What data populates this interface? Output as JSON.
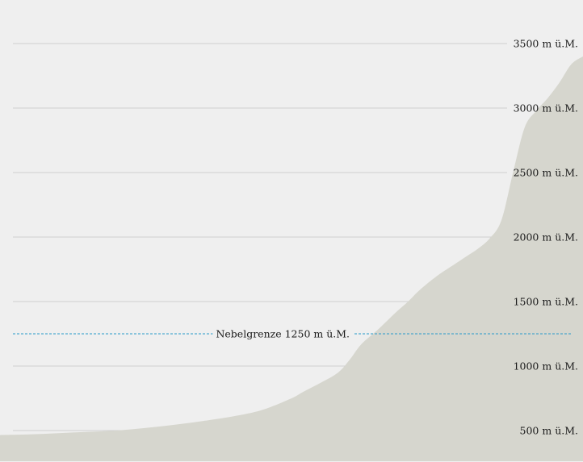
{
  "chart_data": {
    "type": "area",
    "title": "",
    "xlabel": "",
    "ylabel": "",
    "ylim": [
      0,
      3600
    ],
    "y_ticks": [
      500,
      1000,
      1500,
      2000,
      2500,
      3000,
      3500
    ],
    "y_tick_labels": [
      "500 m ü.M.",
      "1000 m ü.M.",
      "1500 m ü.M.",
      "2000 m ü.M.",
      "2500 m ü.M.",
      "3000 m ü.M.",
      "3500 m ü.M."
    ],
    "grid": true,
    "x": [
      0,
      5,
      10,
      15,
      20,
      25,
      30,
      35,
      40,
      45,
      50,
      52,
      55,
      58,
      60,
      62,
      65,
      68,
      70,
      72,
      75,
      78,
      80,
      82,
      84,
      86,
      88,
      90,
      92,
      94,
      96,
      98,
      100
    ],
    "values": [
      465,
      470,
      480,
      490,
      500,
      520,
      545,
      575,
      610,
      660,
      750,
      800,
      870,
      950,
      1050,
      1170,
      1290,
      1420,
      1500,
      1590,
      1700,
      1790,
      1850,
      1910,
      1990,
      2130,
      2500,
      2850,
      2980,
      3080,
      3200,
      3340,
      3400
    ],
    "colors": {
      "terrain": "#d6d6ce",
      "background": "#efefef",
      "grid": "#cfcfcf",
      "fog_line": "#2a9bc9"
    },
    "annotations": [
      {
        "label": "Nebelgrenze 1250 m ü.M.",
        "y": 1250,
        "style": "dashed"
      }
    ]
  }
}
